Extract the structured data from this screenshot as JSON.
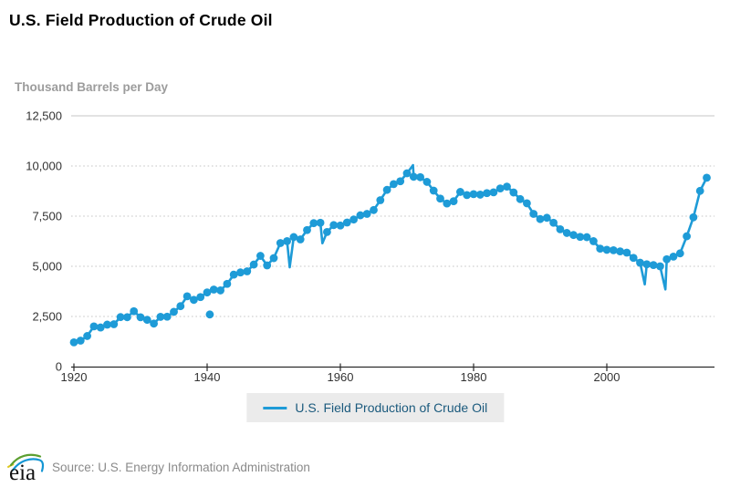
{
  "page": {
    "title": "U.S. Field Production of Crude Oil",
    "source": "Source: U.S. Energy Information Administration",
    "logo_text": "eia"
  },
  "chart_data": {
    "type": "line",
    "title": "U.S. Field Production of Crude Oil",
    "ylabel": "Thousand Barrels per Day",
    "xlabel": "",
    "legend_label": "U.S. Field Production of Crude Oil",
    "legend_position": "bottom-center",
    "grid": "horizontal, dotted except solid top line",
    "marker": "circle",
    "line_color": "#1E9BD7",
    "colors": {
      "series_line": "#1E9BD7",
      "legend_text": "#1b5a7d",
      "legend_background": "#ebebeb",
      "unit_label_text": "#9c9c9c",
      "source_text": "#8a8a8a",
      "logo_green": "#5d9f31",
      "logo_blue": "#1496d4",
      "logo_yellow": "#ddc71e"
    },
    "ylim": [
      0,
      12500
    ],
    "xlim": [
      1920,
      2016
    ],
    "yticks": [
      {
        "value": 0,
        "label": "0"
      },
      {
        "value": 2500,
        "label": "2,500"
      },
      {
        "value": 5000,
        "label": "5,000"
      },
      {
        "value": 7500,
        "label": "7,500"
      },
      {
        "value": 10000,
        "label": "10,000"
      },
      {
        "value": 12500,
        "label": "12,500"
      }
    ],
    "xticks": [
      {
        "value": 1920,
        "label": "1920"
      },
      {
        "value": 1940,
        "label": "1940"
      },
      {
        "value": 1960,
        "label": "1960"
      },
      {
        "value": 1980,
        "label": "1980"
      },
      {
        "value": 2000,
        "label": "2000"
      }
    ],
    "x": [
      1920,
      1921,
      1922,
      1923,
      1924,
      1925,
      1926,
      1927,
      1928,
      1929,
      1930,
      1931,
      1932,
      1933,
      1934,
      1935,
      1936,
      1937,
      1938,
      1939,
      1940,
      1941,
      1942,
      1943,
      1944,
      1945,
      1946,
      1947,
      1948,
      1949,
      1950,
      1951,
      1952,
      1953,
      1954,
      1955,
      1956,
      1957,
      1958,
      1959,
      1960,
      1961,
      1962,
      1963,
      1964,
      1965,
      1966,
      1967,
      1968,
      1969,
      1970,
      1971,
      1972,
      1973,
      1974,
      1975,
      1976,
      1977,
      1978,
      1979,
      1980,
      1981,
      1982,
      1983,
      1984,
      1985,
      1986,
      1987,
      1988,
      1989,
      1990,
      1991,
      1992,
      1993,
      1994,
      1995,
      1996,
      1997,
      1998,
      1999,
      2000,
      2001,
      2002,
      2003,
      2004,
      2005,
      2006,
      2007,
      2008,
      2009,
      2010,
      2011,
      2012,
      2013,
      2014,
      2015
    ],
    "values": [
      1211,
      1294,
      1526,
      2005,
      1951,
      2093,
      2112,
      2469,
      2463,
      2760,
      2460,
      2332,
      2145,
      2481,
      2487,
      2730,
      3014,
      3504,
      3327,
      3466,
      3697,
      3842,
      3799,
      4125,
      4584,
      4695,
      4750,
      5088,
      5520,
      5046,
      5407,
      6158,
      6256,
      6458,
      6342,
      6807,
      7151,
      7170,
      6710,
      7054,
      7035,
      7183,
      7332,
      7542,
      7614,
      7804,
      8295,
      8810,
      9096,
      9238,
      9637,
      9463,
      9441,
      9208,
      8774,
      8375,
      8132,
      8245,
      8707,
      8552,
      8597,
      8572,
      8649,
      8688,
      8879,
      8971,
      8680,
      8349,
      8140,
      7613,
      7355,
      7417,
      7171,
      6847,
      6662,
      6560,
      6465,
      6452,
      6252,
      5881,
      5822,
      5801,
      5746,
      5681,
      5419,
      5178,
      5102,
      5064,
      5000,
      5353,
      5482,
      5645,
      6497,
      7441,
      8759,
      9415
    ],
    "anomalies": {
      "isolated_point": {
        "x": 1940.4,
        "value": 2600
      },
      "spikes": [
        {
          "x": 1952.4,
          "value": 4950
        },
        {
          "x": 1957.3,
          "value": 6150
        },
        {
          "x": 1970.9,
          "value": 10040
        },
        {
          "x": 2005.7,
          "value": 4100
        },
        {
          "x": 2008.8,
          "value": 3850
        }
      ]
    }
  }
}
